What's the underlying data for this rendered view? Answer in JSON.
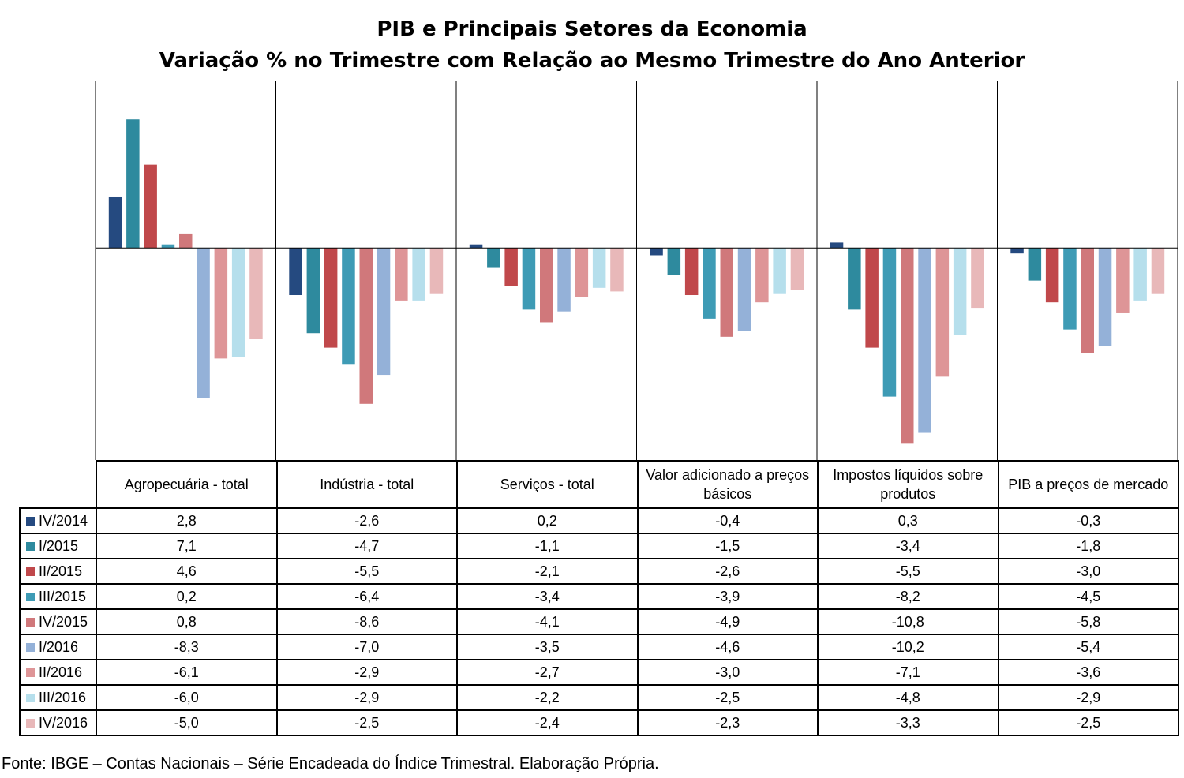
{
  "chart_data": {
    "type": "bar",
    "title": "PIB e Principais Setores da Economia",
    "subtitle": "Variação % no Trimestre com Relação ao Mesmo Trimestre do Ano Anterior",
    "categories": [
      "Agropecuária - total",
      "Indústria - total",
      "Serviços - total",
      "Valor adicionado a preços básicos",
      "Impostos líquidos sobre produtos",
      "PIB a preços de mercado"
    ],
    "series": [
      {
        "name": "IV/2014",
        "color": "#254a80",
        "values": [
          2.8,
          -2.6,
          0.2,
          -0.4,
          0.3,
          -0.3
        ],
        "labels": [
          "2,8",
          "-2,6",
          "0,2",
          "-0,4",
          "0,3",
          "-0,3"
        ]
      },
      {
        "name": "I/2015",
        "color": "#2e8a9e",
        "values": [
          7.1,
          -4.7,
          -1.1,
          -1.5,
          -3.4,
          -1.8
        ],
        "labels": [
          "7,1",
          "-4,7",
          "-1,1",
          "-1,5",
          "-3,4",
          "-1,8"
        ]
      },
      {
        "name": "II/2015",
        "color": "#c0484b",
        "values": [
          4.6,
          -5.5,
          -2.1,
          -2.6,
          -5.5,
          -3.0
        ],
        "labels": [
          "4,6",
          "-5,5",
          "-2,1",
          "-2,6",
          "-5,5",
          "-3,0"
        ]
      },
      {
        "name": "III/2015",
        "color": "#3e9bb5",
        "values": [
          0.2,
          -6.4,
          -3.4,
          -3.9,
          -8.2,
          -4.5
        ],
        "labels": [
          "0,2",
          "-6,4",
          "-3,4",
          "-3,9",
          "-8,2",
          "-4,5"
        ]
      },
      {
        "name": "IV/2015",
        "color": "#d0787b",
        "values": [
          0.8,
          -8.6,
          -4.1,
          -4.9,
          -10.8,
          -5.8
        ],
        "labels": [
          "0,8",
          "-8,6",
          "-4,1",
          "-4,9",
          "-10,8",
          "-5,8"
        ]
      },
      {
        "name": "I/2016",
        "color": "#94b1d8",
        "values": [
          -8.3,
          -7.0,
          -3.5,
          -4.6,
          -10.2,
          -5.4
        ],
        "labels": [
          "-8,3",
          "-7,0",
          "-3,5",
          "-4,6",
          "-10,2",
          "-5,4"
        ]
      },
      {
        "name": "II/2016",
        "color": "#de9597",
        "values": [
          -6.1,
          -2.9,
          -2.7,
          -3.0,
          -7.1,
          -3.6
        ],
        "labels": [
          "-6,1",
          "-2,9",
          "-2,7",
          "-3,0",
          "-7,1",
          "-3,6"
        ]
      },
      {
        "name": "III/2016",
        "color": "#b6dfec",
        "values": [
          -6.0,
          -2.9,
          -2.2,
          -2.5,
          -4.8,
          -2.9
        ],
        "labels": [
          "-6,0",
          "-2,9",
          "-2,2",
          "-2,5",
          "-4,8",
          "-2,9"
        ]
      },
      {
        "name": "IV/2016",
        "color": "#e8b8b9",
        "values": [
          -5.0,
          -2.5,
          -2.4,
          -2.3,
          -3.3,
          -2.5
        ],
        "labels": [
          "-5,0",
          "-2,5",
          "-2,4",
          "-2,3",
          "-3,3",
          "-2,5"
        ]
      }
    ],
    "ylim": [
      -11.7,
      9.2
    ],
    "grid": false,
    "legend": "data-table-left"
  },
  "source": "Fonte: IBGE – Contas Nacionais – Série Encadeada do Índice Trimestral. Elaboração Própria."
}
